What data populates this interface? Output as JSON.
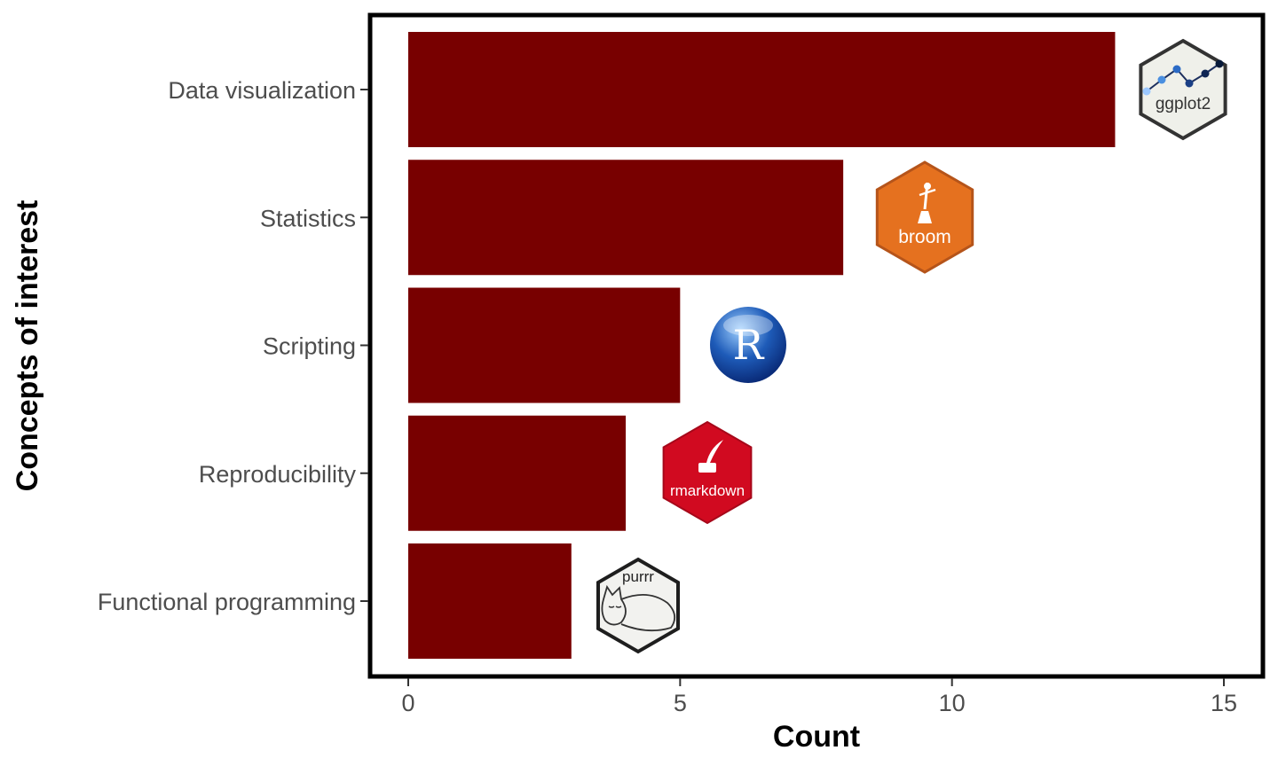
{
  "chart_data": {
    "type": "bar",
    "orientation": "horizontal",
    "categories": [
      "Data visualization",
      "Statistics",
      "Scripting",
      "Reproducibility",
      "Functional programming"
    ],
    "values": [
      13,
      8,
      5,
      4,
      3
    ],
    "xlabel": "Count",
    "ylabel": "Concepts of interest",
    "xlim": [
      0,
      15
    ],
    "xticks": [
      0,
      5,
      10,
      15
    ],
    "bar_color": "#780000",
    "grid": false,
    "legend": "none",
    "annotations": [
      {
        "category": "Data visualization",
        "logo": "ggplot2-hex-logo",
        "label": "ggplot2"
      },
      {
        "category": "Statistics",
        "logo": "broom-hex-logo",
        "label": "broom"
      },
      {
        "category": "Scripting",
        "logo": "r-language-logo",
        "label": "R"
      },
      {
        "category": "Reproducibility",
        "logo": "rmarkdown-hex-logo",
        "label": "rmarkdown"
      },
      {
        "category": "Functional programming",
        "logo": "purrr-hex-logo",
        "label": "purrr"
      }
    ]
  },
  "colors": {
    "bar": "#780000",
    "ggplot2": "#eff0ea",
    "broom": "#e5711f",
    "r_blue": "#1e5bb8",
    "rmarkdown": "#d10a20",
    "purrr": "#f2f2ef"
  }
}
